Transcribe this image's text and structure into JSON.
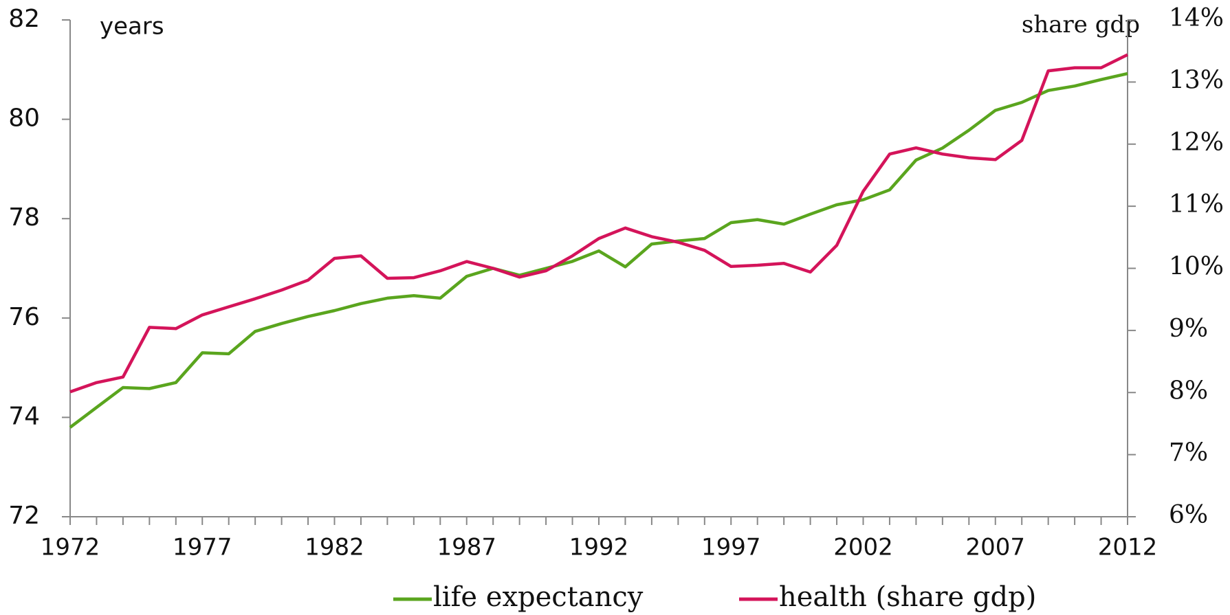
{
  "chart_data": {
    "type": "line",
    "y_label": "years",
    "y2_label": "share gdp",
    "x": [
      1972,
      1973,
      1974,
      1975,
      1976,
      1977,
      1978,
      1979,
      1980,
      1981,
      1982,
      1983,
      1984,
      1985,
      1986,
      1987,
      1988,
      1989,
      1990,
      1991,
      1992,
      1993,
      1994,
      1995,
      1996,
      1997,
      1998,
      1999,
      2000,
      2001,
      2002,
      2003,
      2004,
      2005,
      2006,
      2007,
      2008,
      2009,
      2010,
      2011,
      2012
    ],
    "xlim": [
      1972,
      2012
    ],
    "xticks": [
      1972,
      1977,
      1982,
      1987,
      1992,
      1997,
      2002,
      2007,
      2012
    ],
    "ylim": [
      72,
      82
    ],
    "yticks": [
      72,
      74,
      76,
      78,
      80,
      82
    ],
    "y2lim": [
      6,
      14
    ],
    "y2ticks": [
      {
        "value": 6,
        "label": "6%"
      },
      {
        "value": 7,
        "label": "7%"
      },
      {
        "value": 8,
        "label": "8%"
      },
      {
        "value": 9,
        "label": "9%"
      },
      {
        "value": 10,
        "label": "10%"
      },
      {
        "value": 11,
        "label": "11%"
      },
      {
        "value": 12,
        "label": "12%"
      },
      {
        "value": 13,
        "label": "13%"
      },
      {
        "value": 14,
        "label": "14%"
      }
    ],
    "series": [
      {
        "name": "life expectancy",
        "color": "#5aa51e",
        "values": [
          73.8,
          74.2,
          74.6,
          74.58,
          74.7,
          75.3,
          75.28,
          75.73,
          75.89,
          76.03,
          76.15,
          76.29,
          76.4,
          76.45,
          76.4,
          76.84,
          77.0,
          76.86,
          77.0,
          77.14,
          77.35,
          77.03,
          77.49,
          77.55,
          77.6,
          77.92,
          77.98,
          77.89,
          78.09,
          78.28,
          78.38,
          78.58,
          79.18,
          79.42,
          79.78,
          80.18,
          80.34,
          80.58,
          80.67,
          80.8,
          80.92
        ]
      },
      {
        "name": "health (share gdp)",
        "color": "#d4145a",
        "axis": "y2",
        "values": [
          8.01,
          8.16,
          8.25,
          9.05,
          9.03,
          9.25,
          9.38,
          9.51,
          9.65,
          9.81,
          10.16,
          10.2,
          9.84,
          9.85,
          9.96,
          10.11,
          10.0,
          9.86,
          9.96,
          10.2,
          10.48,
          10.65,
          10.51,
          10.42,
          10.29,
          10.03,
          10.05,
          10.08,
          9.94,
          10.37,
          11.24,
          11.84,
          11.94,
          11.84,
          11.78,
          11.75,
          12.06,
          13.18,
          13.23,
          13.23,
          13.44
        ]
      }
    ],
    "legend": "bottom"
  }
}
